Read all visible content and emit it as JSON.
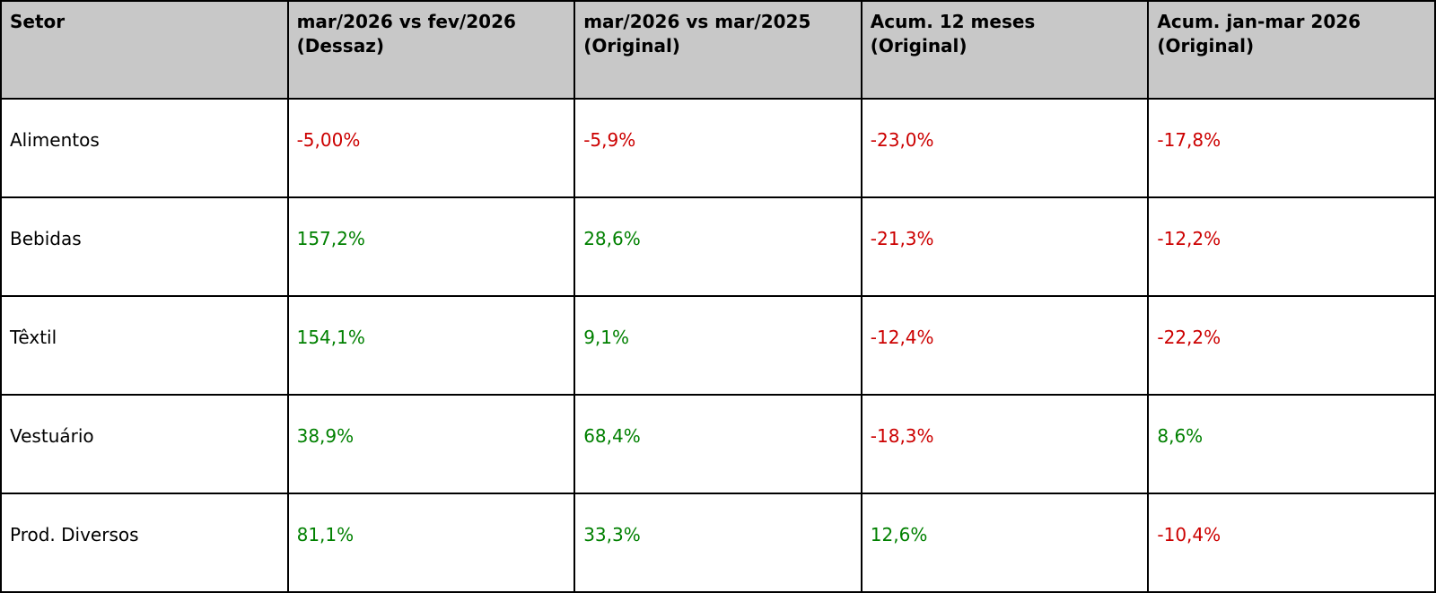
{
  "table": {
    "headers": [
      {
        "line1": "Setor",
        "line2": ""
      },
      {
        "line1": "mar/2026 vs fev/2026",
        "line2": "(Dessaz)"
      },
      {
        "line1": "mar/2026 vs mar/2025",
        "line2": "(Original)"
      },
      {
        "line1": "Acum. 12 meses",
        "line2": "(Original)"
      },
      {
        "line1": "Acum. jan-mar 2026",
        "line2": "(Original)"
      }
    ],
    "rows": [
      {
        "setor": "Alimentos",
        "values": [
          {
            "text": "-5,00%",
            "sentiment": "negative"
          },
          {
            "text": "-5,9%",
            "sentiment": "negative"
          },
          {
            "text": "-23,0%",
            "sentiment": "negative"
          },
          {
            "text": "-17,8%",
            "sentiment": "negative"
          }
        ]
      },
      {
        "setor": "Bebidas",
        "values": [
          {
            "text": "157,2%",
            "sentiment": "positive"
          },
          {
            "text": "28,6%",
            "sentiment": "positive"
          },
          {
            "text": "-21,3%",
            "sentiment": "negative"
          },
          {
            "text": "-12,2%",
            "sentiment": "negative"
          }
        ]
      },
      {
        "setor": "Têxtil",
        "values": [
          {
            "text": "154,1%",
            "sentiment": "positive"
          },
          {
            "text": "9,1%",
            "sentiment": "positive"
          },
          {
            "text": "-12,4%",
            "sentiment": "negative"
          },
          {
            "text": "-22,2%",
            "sentiment": "negative"
          }
        ]
      },
      {
        "setor": "Vestuário",
        "values": [
          {
            "text": "38,9%",
            "sentiment": "positive"
          },
          {
            "text": "68,4%",
            "sentiment": "positive"
          },
          {
            "text": "-18,3%",
            "sentiment": "negative"
          },
          {
            "text": "8,6%",
            "sentiment": "positive"
          }
        ]
      },
      {
        "setor": "Prod. Diversos",
        "values": [
          {
            "text": "81,1%",
            "sentiment": "positive"
          },
          {
            "text": "33,3%",
            "sentiment": "positive"
          },
          {
            "text": "12,6%",
            "sentiment": "positive"
          },
          {
            "text": "-10,4%",
            "sentiment": "negative"
          }
        ]
      }
    ]
  },
  "colors": {
    "header_bg": "#c8c8c8",
    "border": "#000000",
    "negative": "#cc0000",
    "positive": "#008000",
    "text": "#000000"
  },
  "chart_data": {
    "type": "table",
    "title": "",
    "columns": [
      "Setor",
      "mar/2026 vs fev/2026 (Dessaz)",
      "mar/2026 vs mar/2025 (Original)",
      "Acum. 12 meses (Original)",
      "Acum. jan-mar 2026 (Original)"
    ],
    "rows": [
      [
        "Alimentos",
        -5.0,
        -5.9,
        -23.0,
        -17.8
      ],
      [
        "Bebidas",
        157.2,
        28.6,
        -21.3,
        -12.2
      ],
      [
        "Têxtil",
        154.1,
        9.1,
        -12.4,
        -22.2
      ],
      [
        "Vestuário",
        38.9,
        68.4,
        -18.3,
        8.6
      ],
      [
        "Prod. Diversos",
        81.1,
        33.3,
        12.6,
        -10.4
      ]
    ],
    "value_unit": "%",
    "decimal_separator": ",",
    "color_rule": "negative values rendered red (#cc0000), positive values rendered green (#008000)",
    "layout": "5 equal-width columns, gray header row, black 2px grid lines"
  }
}
